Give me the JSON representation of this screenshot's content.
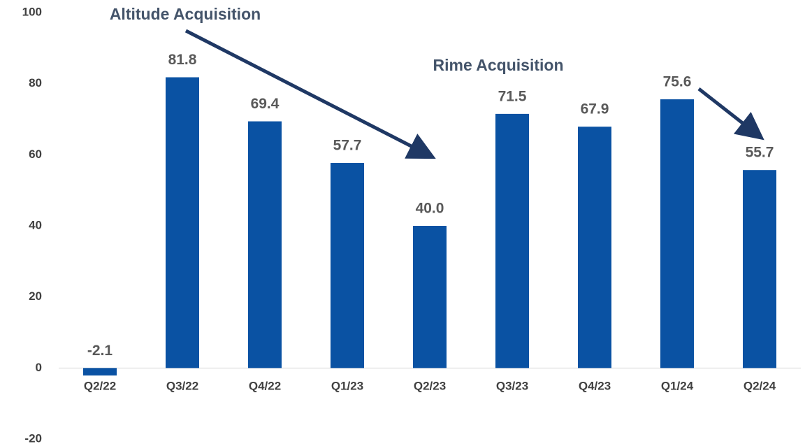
{
  "chart_data": {
    "type": "bar",
    "categories": [
      "Q2/22",
      "Q3/22",
      "Q4/22",
      "Q1/23",
      "Q2/23",
      "Q3/23",
      "Q4/23",
      "Q1/24",
      "Q2/24"
    ],
    "values": [
      -2.1,
      81.8,
      69.4,
      57.7,
      40,
      71.5,
      67.9,
      75.6,
      55.7
    ],
    "value_labels": [
      "-2.1",
      "81.8",
      "69.4",
      "57.7",
      "40.0",
      "71.5",
      "67.9",
      "75.6",
      "55.7"
    ],
    "color": "#0a52a3",
    "ylim": [
      -20,
      100
    ],
    "yticks": [
      -20,
      0,
      20,
      40,
      60,
      80,
      100
    ],
    "grid": false,
    "annotations": [
      {
        "text": "Altitude Acquisition"
      },
      {
        "text": "Rime Acquisition"
      }
    ]
  }
}
